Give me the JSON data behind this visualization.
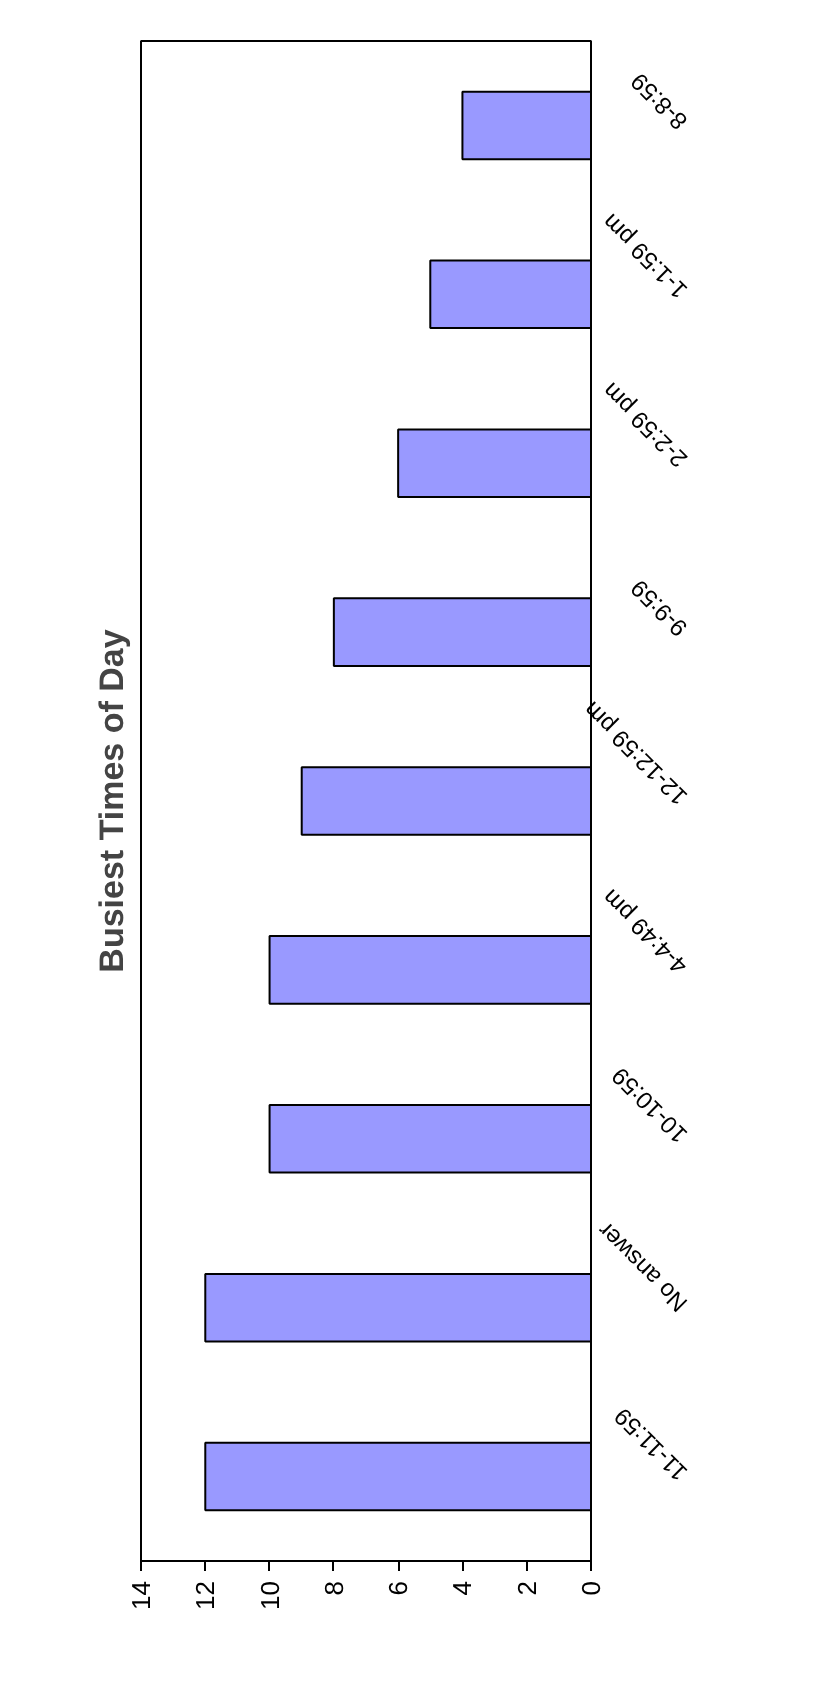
{
  "chart_data": {
    "type": "bar",
    "orientation": "horizontal",
    "title": "Busiest Times of Day",
    "categories": [
      "8-8:59",
      "1-1:59 pm",
      "2-2:59 pm",
      "9-9:59",
      "12-12:59 pm",
      "4-4:49 pm",
      "10-10:59",
      "No answer",
      "11-11:59"
    ],
    "values": [
      4,
      5,
      6,
      8,
      9,
      10,
      10,
      12,
      12
    ],
    "color": "#9999ff",
    "xlim": [
      14,
      0
    ],
    "xticks": [
      0,
      2,
      4,
      6,
      8,
      10,
      12,
      14
    ],
    "grid": false
  }
}
